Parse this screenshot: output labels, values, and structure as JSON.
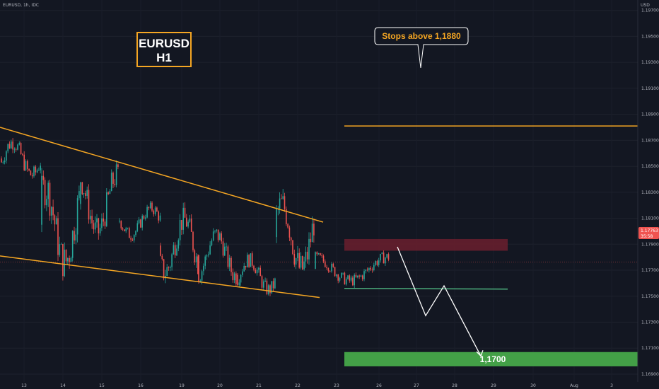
{
  "header": {
    "symbol": "EURUSD, 1h, IDC",
    "currency": "USD"
  },
  "title_box": {
    "line1": "EURUSD",
    "line2": "H1"
  },
  "callout": {
    "text": "Stops above 1,1880"
  },
  "target": {
    "label": "1,1700"
  },
  "price_tag": {
    "price": "1.17763",
    "countdown": "35:58"
  },
  "colors": {
    "background": "#131722",
    "bull": "#26a69a",
    "bear": "#ef5350",
    "trendline": "#f5a623",
    "resistance_zone": "#6b1f2e",
    "support_line": "#4caf7d",
    "target_zone": "#43a047",
    "projection": "#ffffff",
    "axis_text": "#b2b5be"
  },
  "chart_data": {
    "type": "candlestick",
    "y_axis": {
      "side": "right",
      "ylim": [
        1.1684,
        1.1978
      ],
      "ticks": [
        "1.19700",
        "1.19500",
        "1.19300",
        "1.19100",
        "1.18900",
        "1.18700",
        "1.18500",
        "1.18300",
        "1.18100",
        "1.17900",
        "1.17700",
        "1.17500",
        "1.17300",
        "1.17100",
        "1.16900"
      ]
    },
    "x_axis": {
      "ticks": [
        "13",
        "14",
        "15",
        "16",
        "19",
        "20",
        "21",
        "22",
        "23",
        "26",
        "27",
        "28",
        "29",
        "30",
        "Aug",
        "3"
      ]
    },
    "series": [
      {
        "kind": "candles",
        "approx_ohlc_ranges": [
          {
            "day": "13",
            "high": 1.1874,
            "low": 1.1838
          },
          {
            "day": "14",
            "high": 1.1846,
            "low": 1.1764
          },
          {
            "day": "15",
            "high": 1.1852,
            "low": 1.179
          },
          {
            "day": "16",
            "high": 1.1822,
            "low": 1.1793
          },
          {
            "day": "19",
            "high": 1.1818,
            "low": 1.176
          },
          {
            "day": "20",
            "high": 1.1804,
            "low": 1.1759
          },
          {
            "day": "21",
            "high": 1.1783,
            "low": 1.175
          },
          {
            "day": "22",
            "high": 1.1831,
            "low": 1.176
          },
          {
            "day": "23",
            "high": 1.1784,
            "low": 1.1758
          }
        ],
        "last_price": 1.17763
      }
    ],
    "annotations": {
      "falling_wedge_upper": {
        "from": [
          "13",
          1.188
        ],
        "to": [
          "22",
          1.1807
        ]
      },
      "falling_wedge_lower": {
        "from": [
          "13",
          1.1781
        ],
        "to": [
          "22",
          1.1749
        ]
      },
      "stops_line": 1.1881,
      "resistance_zone": [
        1.1785,
        1.1794
      ],
      "support_line": 1.1756,
      "target_zone": [
        1.1696,
        1.1707
      ],
      "target_level": "1,1700",
      "projection_path": [
        1.1788,
        1.1735,
        1.1758,
        1.1704
      ]
    }
  }
}
